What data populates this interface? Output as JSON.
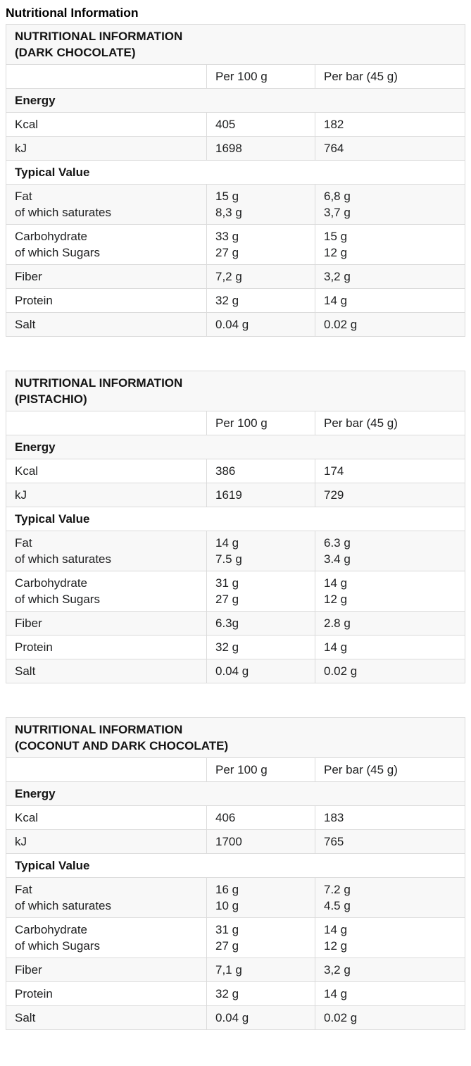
{
  "page": {
    "title": "Nutritional Information"
  },
  "tables": [
    {
      "title": "NUTRITIONAL INFORMATION\n(DARK CHOCOLATE)",
      "col_headers": [
        "Per 100 g",
        "Per bar (45 g)"
      ],
      "rows": [
        {
          "type": "section",
          "label": "Energy"
        },
        {
          "type": "data",
          "label": "Kcal",
          "per_100g": "405",
          "per_bar": "182"
        },
        {
          "type": "data",
          "label": "kJ",
          "per_100g": "1698",
          "per_bar": "764"
        },
        {
          "type": "section",
          "label": "Typical Value"
        },
        {
          "type": "data",
          "label": "Fat\nof which saturates",
          "per_100g": "15 g\n8,3 g",
          "per_bar": "6,8 g\n3,7 g"
        },
        {
          "type": "data",
          "label": "Carbohydrate\nof which Sugars",
          "per_100g": "33 g\n27 g",
          "per_bar": "15 g\n12 g"
        },
        {
          "type": "data",
          "label": "Fiber",
          "per_100g": "7,2 g",
          "per_bar": "3,2 g"
        },
        {
          "type": "data",
          "label": "Protein",
          "per_100g": "32 g",
          "per_bar": "14 g"
        },
        {
          "type": "data",
          "label": "Salt",
          "per_100g": "0.04 g",
          "per_bar": "0.02 g"
        }
      ]
    },
    {
      "title": "NUTRITIONAL INFORMATION\n(PISTACHIO)",
      "col_headers": [
        "Per 100 g",
        "Per bar (45 g)"
      ],
      "rows": [
        {
          "type": "section",
          "label": "Energy"
        },
        {
          "type": "data",
          "label": "Kcal",
          "per_100g": "386",
          "per_bar": "174"
        },
        {
          "type": "data",
          "label": "kJ",
          "per_100g": "1619",
          "per_bar": "729"
        },
        {
          "type": "section",
          "label": "Typical Value"
        },
        {
          "type": "data",
          "label": "Fat\nof which saturates",
          "per_100g": "14 g\n7.5 g",
          "per_bar": "6.3 g\n3.4 g"
        },
        {
          "type": "data",
          "label": "Carbohydrate\nof which Sugars",
          "per_100g": "31 g\n27 g",
          "per_bar": "14 g\n12 g"
        },
        {
          "type": "data",
          "label": "Fiber",
          "per_100g": "6.3g",
          "per_bar": "2.8 g"
        },
        {
          "type": "data",
          "label": "Protein",
          "per_100g": "32 g",
          "per_bar": "14 g"
        },
        {
          "type": "data",
          "label": "Salt",
          "per_100g": "0.04 g",
          "per_bar": "0.02 g"
        }
      ]
    },
    {
      "title": "NUTRITIONAL INFORMATION\n(COCONUT AND DARK CHOCOLATE)",
      "col_headers": [
        "Per 100 g",
        "Per bar (45 g)"
      ],
      "rows": [
        {
          "type": "section",
          "label": "Energy"
        },
        {
          "type": "data",
          "label": "Kcal",
          "per_100g": "406",
          "per_bar": "183"
        },
        {
          "type": "data",
          "label": "kJ",
          "per_100g": "1700",
          "per_bar": "765"
        },
        {
          "type": "section",
          "label": "Typical Value"
        },
        {
          "type": "data",
          "label": "Fat\nof which saturates",
          "per_100g": "16 g\n10 g",
          "per_bar": "7.2 g\n4.5 g"
        },
        {
          "type": "data",
          "label": "Carbohydrate\nof which Sugars",
          "per_100g": "31 g\n27 g",
          "per_bar": "14 g\n12 g"
        },
        {
          "type": "data",
          "label": "Fiber",
          "per_100g": "7,1 g",
          "per_bar": "3,2 g"
        },
        {
          "type": "data",
          "label": "Protein",
          "per_100g": "32 g",
          "per_bar": "14 g"
        },
        {
          "type": "data",
          "label": "Salt",
          "per_100g": "0.04 g",
          "per_bar": "0.02 g"
        }
      ]
    }
  ],
  "colors": {
    "stripe_bg": "#f8f8f8",
    "border": "#dbdbdb",
    "text": "#202122"
  }
}
